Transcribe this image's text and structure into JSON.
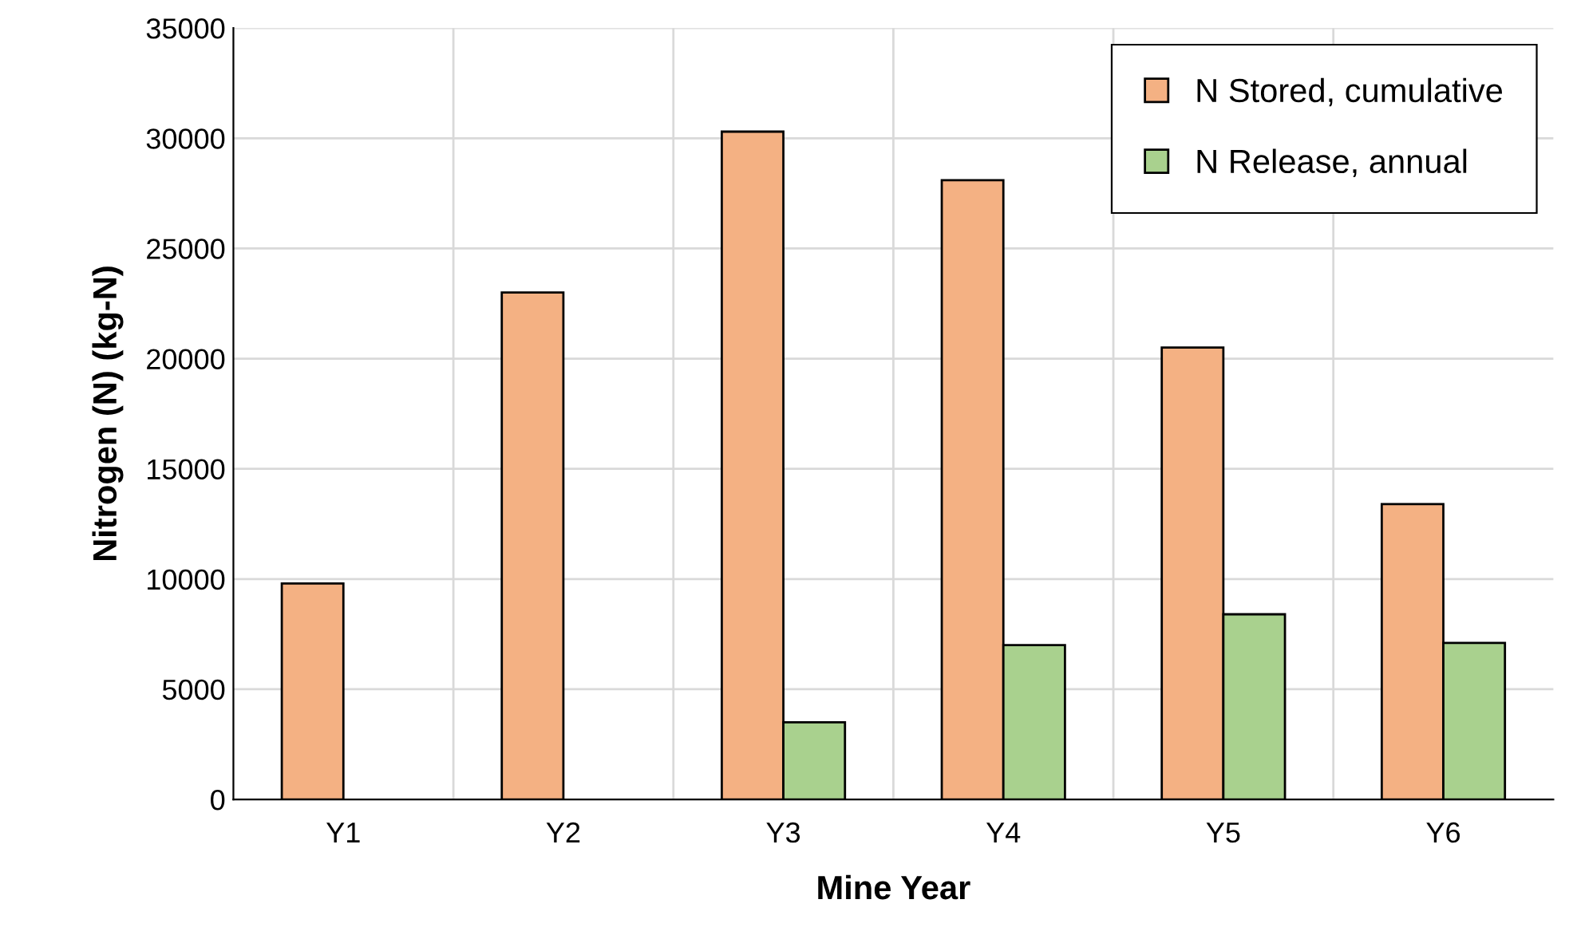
{
  "chart_data": {
    "type": "bar",
    "xlabel": "Mine Year",
    "ylabel": "Nitrogen (N) (kg-N)",
    "categories": [
      "Y1",
      "Y2",
      "Y3",
      "Y4",
      "Y5",
      "Y6"
    ],
    "series": [
      {
        "name": "N Stored, cumulative",
        "color": "#f4b183",
        "values": [
          9800,
          23000,
          30300,
          28100,
          20500,
          13400
        ]
      },
      {
        "name": "N Release, annual",
        "color": "#a9d18e",
        "values": [
          null,
          null,
          3500,
          7000,
          8400,
          7100
        ]
      }
    ],
    "ylim": [
      0,
      35000
    ],
    "yticks": [
      0,
      5000,
      10000,
      15000,
      20000,
      25000,
      30000,
      35000
    ],
    "grid": true,
    "legend": "top right"
  }
}
